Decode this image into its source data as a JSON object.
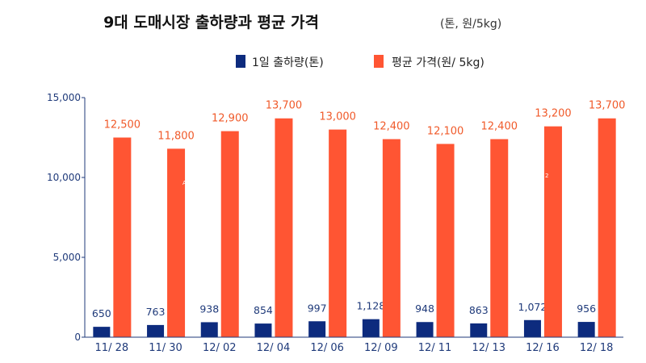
{
  "chart_data": {
    "type": "bar",
    "title": "9대 도매시장 출하량과 평균 가격",
    "unit_note": "(톤, 원/5kg)",
    "categories": [
      "11/ 28",
      "11/ 30",
      "12/ 02",
      "12/ 04",
      "12/ 06",
      "12/ 09",
      "12/ 11",
      "12/ 13",
      "12/ 16",
      "12/ 18"
    ],
    "series": [
      {
        "name": "1일 출하량(톤)",
        "color": "#0d2b7e",
        "values": [
          650,
          763,
          938,
          854,
          997,
          1128,
          948,
          863,
          1072,
          956
        ],
        "labels": [
          "650",
          "763",
          "938",
          "854",
          "997",
          "1,128",
          "948",
          "863",
          "1,072",
          "956"
        ]
      },
      {
        "name": "평균 가격(원/ 5kg)",
        "color": "#ff5533",
        "values": [
          12500,
          11800,
          12900,
          13700,
          13000,
          12400,
          12100,
          12400,
          13200,
          13700
        ],
        "labels": [
          "12,500",
          "11,800",
          "12,900",
          "13,700",
          "13,000",
          "12,400",
          "12,100",
          "12,400",
          "13,200",
          "13,700"
        ]
      }
    ],
    "ylim": [
      0,
      15000
    ],
    "yticks": [
      0,
      5000,
      10000,
      15000
    ],
    "ytick_labels": [
      "0",
      "5,000",
      "10,000",
      "15,000"
    ],
    "legend_position": "top-center",
    "grid": false,
    "axis_color": "#1f3a7a",
    "stray_marks": [
      "A",
      "2"
    ]
  }
}
